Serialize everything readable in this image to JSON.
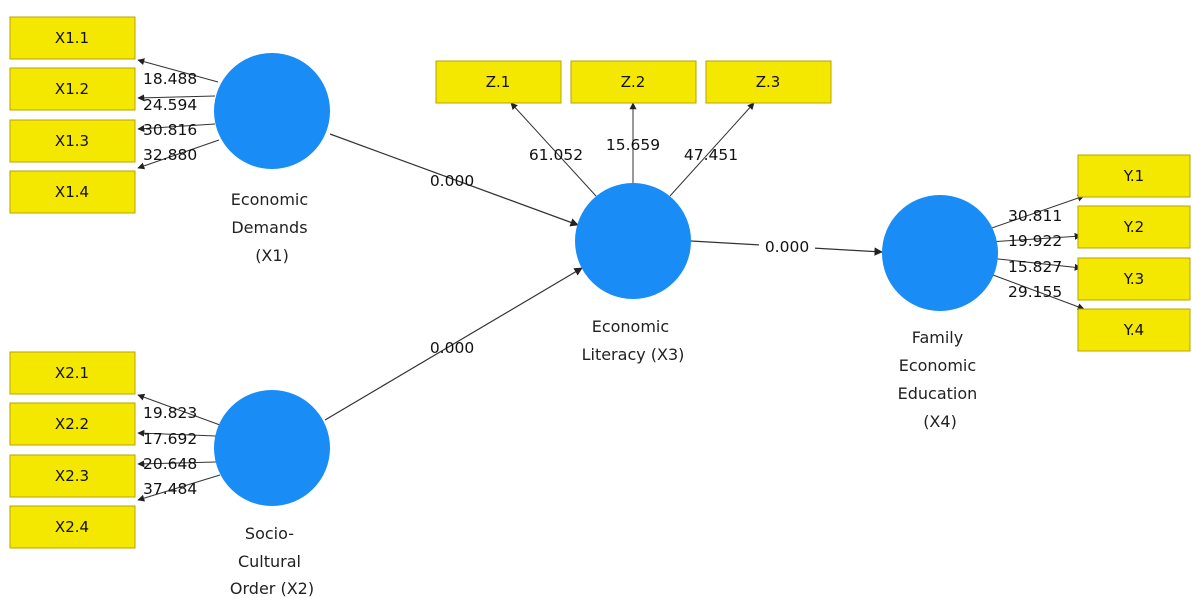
{
  "colors": {
    "indicator_fill": "#f5e800",
    "indicator_stroke": "#b4a400",
    "latent_fill": "#1a8cf5",
    "line": "#333333"
  },
  "latents": {
    "x1": {
      "lines": [
        "Economic",
        "Demands",
        "(X1)"
      ]
    },
    "x2": {
      "lines": [
        "Socio-",
        "Cultural",
        "Order (X2)"
      ]
    },
    "x3": {
      "lines": [
        "Economic",
        "Literacy (X3)"
      ]
    },
    "x4": {
      "lines": [
        "Family",
        "Economic",
        "Education",
        "(X4)"
      ]
    }
  },
  "indicators": {
    "x1": [
      "X1.1",
      "X1.2",
      "X1.3",
      "X1.4"
    ],
    "x2": [
      "X2.1",
      "X2.2",
      "X2.3",
      "X2.4"
    ],
    "z": [
      "Z.1",
      "Z.2",
      "Z.3"
    ],
    "y": [
      "Y.1",
      "Y.2",
      "Y.3",
      "Y.4"
    ]
  },
  "loadings": {
    "x1": [
      "18.488",
      "24.594",
      "30.816",
      "32.880"
    ],
    "x2": [
      "19.823",
      "17.692",
      "20.648",
      "37.484"
    ],
    "z": [
      "61.052",
      "15.659",
      "47.451"
    ],
    "y": [
      "30.811",
      "19.922",
      "15.827",
      "29.155"
    ]
  },
  "paths": {
    "x1_x3": "0.000",
    "x2_x3": "0.000",
    "x3_x4": "0.000"
  }
}
